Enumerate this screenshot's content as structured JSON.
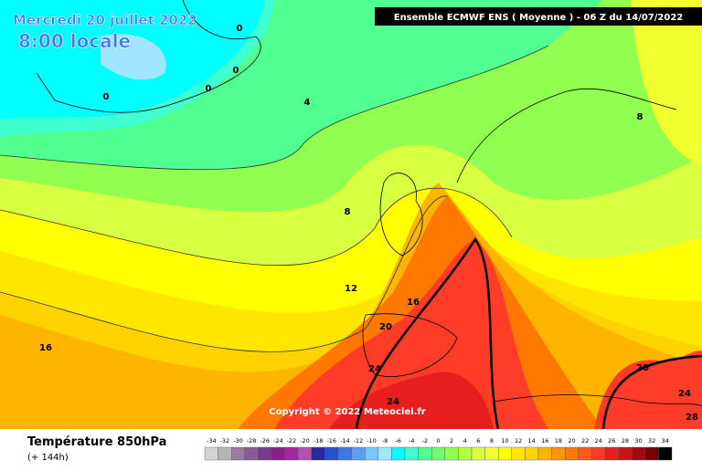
{
  "header": {
    "date": "Mercredi 20 juillet 2022",
    "time": "8:00 locale",
    "model": "Ensemble ECMWF ENS  ( Moyenne )  -  06 Z du 14/07/2022"
  },
  "map": {
    "contour_labels": [
      "0",
      "0",
      "0",
      "0",
      "4",
      "8",
      "8",
      "12",
      "16",
      "16",
      "20",
      "20",
      "24",
      "24",
      "24",
      "28"
    ],
    "copyright": "Copyright © 2022 Meteociel.fr"
  },
  "legend": {
    "title": "Température 850hPa",
    "subtitle": "(+ 144h)",
    "labels": [
      "-34",
      "-32",
      "-30",
      "-28",
      "-26",
      "-24",
      "-22",
      "-20",
      "-18",
      "-16",
      "-14",
      "-12",
      "-10",
      "-8",
      "-6",
      "-4",
      "-2",
      "0",
      "2",
      "4",
      "6",
      "8",
      "10",
      "12",
      "14",
      "16",
      "18",
      "20",
      "22",
      "24",
      "26",
      "28",
      "30",
      "32",
      "34"
    ],
    "colors": [
      "#d2d2d2",
      "#b4b4b4",
      "#9a7aa0",
      "#8a5a96",
      "#7a3a8c",
      "#8c1e8c",
      "#a028a0",
      "#b450b4",
      "#2828a0",
      "#2850c8",
      "#3c78e6",
      "#5aa0f0",
      "#78c8ff",
      "#a0e6ff",
      "#00ffff",
      "#40ffd0",
      "#50ff90",
      "#70ff70",
      "#90ff50",
      "#b4ff40",
      "#d8ff40",
      "#f0ff30",
      "#ffff00",
      "#ffe600",
      "#ffd200",
      "#ffb400",
      "#ff9600",
      "#ff7800",
      "#ff5a1e",
      "#ff3c28",
      "#e61e1e",
      "#c81414",
      "#a00a0a",
      "#780000",
      "#000000"
    ]
  }
}
